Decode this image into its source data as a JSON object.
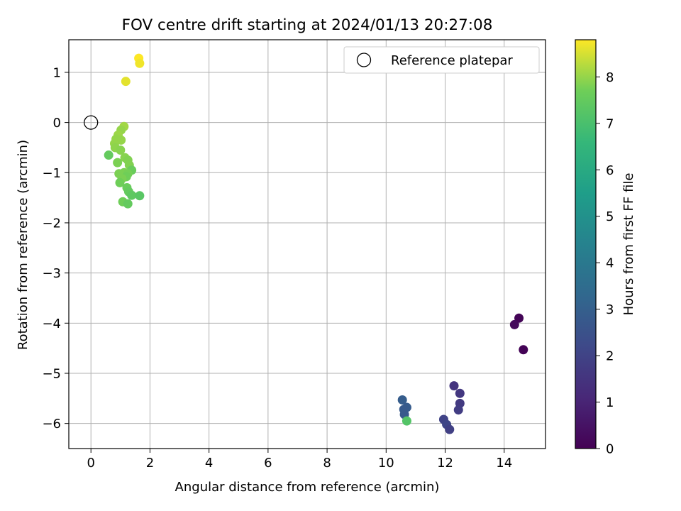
{
  "chart_data": {
    "type": "scatter",
    "title": "FOV centre drift starting at 2024/01/13 20:27:08",
    "xlabel": "Angular distance from reference (arcmin)",
    "ylabel": "Rotation from reference (arcmin)",
    "xlim": [
      -0.75,
      15.4
    ],
    "ylim": [
      -6.5,
      1.65
    ],
    "xticks": [
      0,
      2,
      4,
      6,
      8,
      10,
      12,
      14
    ],
    "yticks": [
      1,
      0,
      -1,
      -2,
      -3,
      -4,
      -5,
      -6
    ],
    "grid": true,
    "legend": {
      "position": "top-right",
      "entries": [
        {
          "label": "Reference platepar",
          "marker": "open-circle"
        }
      ]
    },
    "reference_point": {
      "x": 0,
      "y": 0
    },
    "colorbar": {
      "label": "Hours from first FF file",
      "colormap": "viridis",
      "range": [
        0,
        8.8
      ],
      "ticks": [
        0,
        1,
        2,
        3,
        4,
        5,
        6,
        7,
        8
      ]
    },
    "points": [
      {
        "x": 14.5,
        "y": -3.9,
        "c": 0.1
      },
      {
        "x": 14.35,
        "y": -4.03,
        "c": 0.25
      },
      {
        "x": 14.65,
        "y": -4.53,
        "c": 0.05
      },
      {
        "x": 12.3,
        "y": -5.25,
        "c": 1.5
      },
      {
        "x": 12.5,
        "y": -5.4,
        "c": 1.6
      },
      {
        "x": 12.5,
        "y": -5.6,
        "c": 1.7
      },
      {
        "x": 12.45,
        "y": -5.73,
        "c": 1.8
      },
      {
        "x": 11.95,
        "y": -5.92,
        "c": 2.0
      },
      {
        "x": 12.05,
        "y": -6.02,
        "c": 2.1
      },
      {
        "x": 12.15,
        "y": -6.12,
        "c": 1.9
      },
      {
        "x": 10.55,
        "y": -5.53,
        "c": 2.9
      },
      {
        "x": 10.7,
        "y": -5.68,
        "c": 2.85
      },
      {
        "x": 10.6,
        "y": -5.72,
        "c": 2.8
      },
      {
        "x": 10.62,
        "y": -5.82,
        "c": 2.75
      },
      {
        "x": 10.7,
        "y": -5.95,
        "c": 7.2
      },
      {
        "x": 1.62,
        "y": 1.28,
        "c": 8.8
      },
      {
        "x": 1.65,
        "y": 1.18,
        "c": 8.7
      },
      {
        "x": 1.18,
        "y": 0.82,
        "c": 8.6
      },
      {
        "x": 1.12,
        "y": -0.08,
        "c": 8.1
      },
      {
        "x": 1.02,
        "y": -0.15,
        "c": 8.0
      },
      {
        "x": 0.92,
        "y": -0.25,
        "c": 8.05
      },
      {
        "x": 0.85,
        "y": -0.33,
        "c": 8.0
      },
      {
        "x": 1.02,
        "y": -0.35,
        "c": 8.0
      },
      {
        "x": 0.8,
        "y": -0.42,
        "c": 8.0
      },
      {
        "x": 0.82,
        "y": -0.5,
        "c": 7.95
      },
      {
        "x": 1.0,
        "y": -0.55,
        "c": 7.9
      },
      {
        "x": 0.6,
        "y": -0.65,
        "c": 7.5
      },
      {
        "x": 1.15,
        "y": -0.7,
        "c": 7.9
      },
      {
        "x": 1.25,
        "y": -0.75,
        "c": 7.85
      },
      {
        "x": 0.9,
        "y": -0.8,
        "c": 7.8
      },
      {
        "x": 1.3,
        "y": -0.85,
        "c": 7.85
      },
      {
        "x": 1.38,
        "y": -0.95,
        "c": 7.6
      },
      {
        "x": 1.12,
        "y": -1.0,
        "c": 7.8
      },
      {
        "x": 0.95,
        "y": -1.02,
        "c": 7.8
      },
      {
        "x": 1.25,
        "y": -1.02,
        "c": 7.75
      },
      {
        "x": 1.2,
        "y": -1.08,
        "c": 7.7
      },
      {
        "x": 1.05,
        "y": -1.12,
        "c": 7.8
      },
      {
        "x": 0.98,
        "y": -1.2,
        "c": 7.7
      },
      {
        "x": 1.22,
        "y": -1.3,
        "c": 7.6
      },
      {
        "x": 1.28,
        "y": -1.38,
        "c": 7.5
      },
      {
        "x": 1.38,
        "y": -1.45,
        "c": 7.4
      },
      {
        "x": 1.65,
        "y": -1.46,
        "c": 7.3
      },
      {
        "x": 1.08,
        "y": -1.58,
        "c": 7.7
      },
      {
        "x": 1.25,
        "y": -1.62,
        "c": 7.5
      }
    ]
  }
}
